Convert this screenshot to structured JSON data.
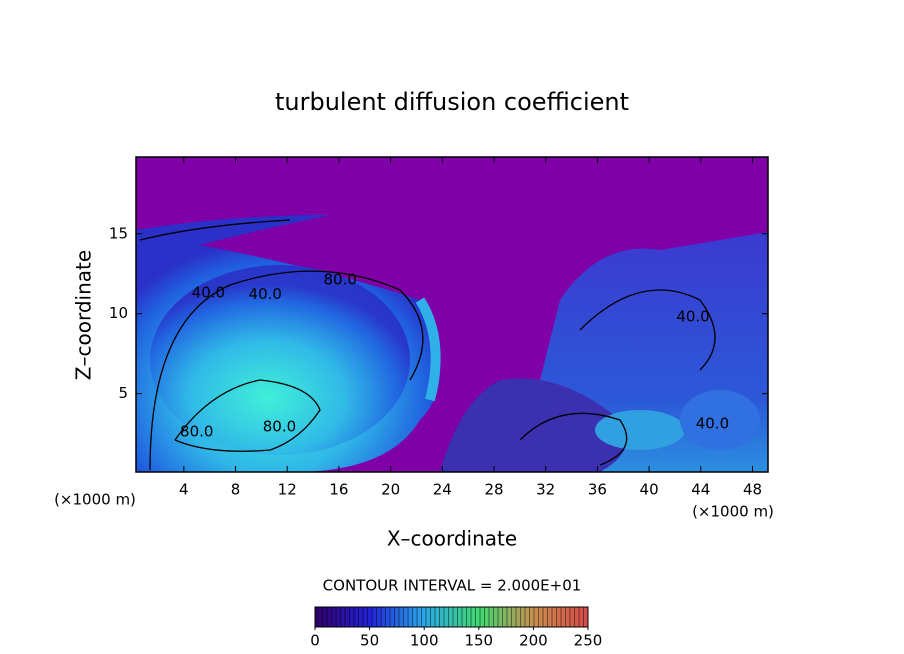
{
  "chart_data": {
    "type": "contour",
    "title": "turbulent diffusion coefficient",
    "x_label": "X–coordinate",
    "y_label": "Z–coordinate",
    "x_unit": "(×1000 m)",
    "y_unit": "(×1000 m)",
    "xlim": [
      0.3,
      49.2
    ],
    "ylim": [
      0.1,
      19.8
    ],
    "xticks": [
      4,
      8,
      12,
      16,
      20,
      24,
      28,
      32,
      36,
      40,
      44,
      48
    ],
    "yticks": [
      5,
      10,
      15
    ],
    "contour_labels": [
      {
        "label": "40.0",
        "level": 40,
        "x": 5.9,
        "y": 11.3
      },
      {
        "label": "40.0",
        "level": 40,
        "x": 10.3,
        "y": 11.2
      },
      {
        "label": "80.0",
        "level": 80,
        "x": 16.1,
        "y": 12.1
      },
      {
        "label": "80.0",
        "level": 80,
        "x": 11.4,
        "y": 2.9
      },
      {
        "label": "80.0",
        "level": 80,
        "x": 5.0,
        "y": 2.6
      },
      {
        "label": "40.0",
        "level": 40,
        "x": 43.4,
        "y": 9.8
      },
      {
        "label": "40.0",
        "level": 40,
        "x": 44.9,
        "y": 3.1
      }
    ],
    "colorbar": {
      "label": "CONTOUR INTERVAL = 2.000E+01",
      "lim": [
        0,
        250
      ],
      "ticks": [
        0,
        50,
        100,
        150,
        200,
        250
      ],
      "colors": [
        "#30006a",
        "#2222d8",
        "#2aa8e8",
        "#40d870",
        "#c89050",
        "#d84848"
      ]
    }
  }
}
